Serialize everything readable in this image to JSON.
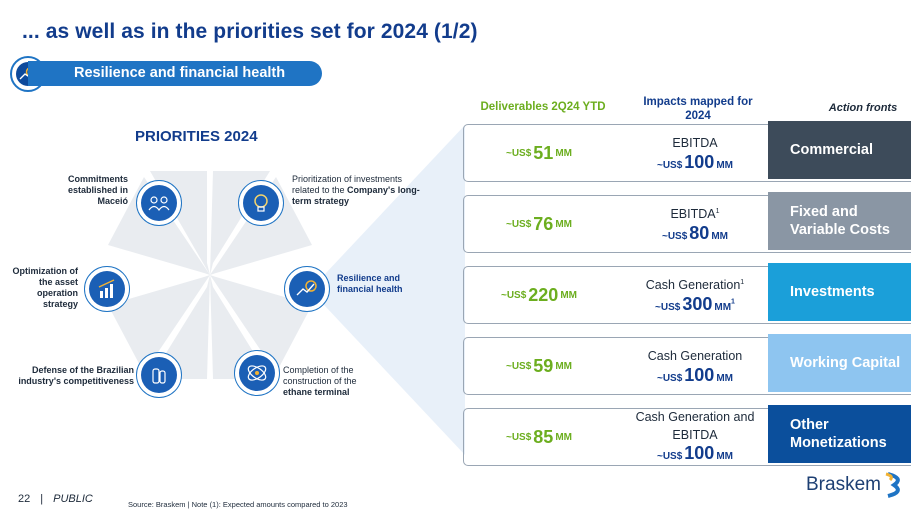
{
  "header": {
    "title": "... as well as in the priorities set for 2024 (1/2)",
    "subtitle": "Resilience and financial health"
  },
  "priorities": {
    "title": "PRIORITIES 2024",
    "items": [
      {
        "label": "Commitments established in Maceió",
        "icon": "people-icon"
      },
      {
        "label_pre": "Prioritization of investments related to the ",
        "label_bold": "Company's long-term strategy",
        "icon": "lightbulb-icon"
      },
      {
        "label": "Optimization of the asset operation strategy",
        "icon": "bar-chart-icon"
      },
      {
        "label": "Resilience and financial health",
        "icon": "money-growth-icon"
      },
      {
        "label": "Defense of the Brazilian industry's competitiveness",
        "icon": "bottles-icon"
      },
      {
        "label_pre": "Completion of the construction of the ",
        "label_bold": "ethane terminal",
        "icon": "molecule-icon"
      }
    ]
  },
  "columns": {
    "deliverables": "Deliverables 2Q24 YTD",
    "impacts": "Impacts mapped for 2024",
    "actions": "Action fronts"
  },
  "rows": [
    {
      "deliv_pre": "~US$",
      "deliv_num": "51",
      "deliv_unit": "MM",
      "impact_label": "EBITDA",
      "impact_sup": "",
      "impact_pre": "~US$",
      "impact_num": "100",
      "impact_unit": "MM",
      "impact_unit_sup": "",
      "action": "Commercial",
      "action_color": "#3d4b5a"
    },
    {
      "deliv_pre": "~US$",
      "deliv_num": "76",
      "deliv_unit": "MM",
      "impact_label": "EBITDA",
      "impact_sup": "1",
      "impact_pre": "~US$",
      "impact_num": "80",
      "impact_unit": "MM",
      "impact_unit_sup": "",
      "action": "Fixed and Variable Costs",
      "action_color": "#8a96a4"
    },
    {
      "deliv_pre": "~US$",
      "deliv_num": "220",
      "deliv_unit": "MM",
      "impact_label": "Cash Generation",
      "impact_sup": "1",
      "impact_pre": "~US$",
      "impact_num": "300",
      "impact_unit": "MM",
      "impact_unit_sup": "1",
      "action": "Investments",
      "action_color": "#1b9fd9"
    },
    {
      "deliv_pre": "~US$",
      "deliv_num": "59",
      "deliv_unit": "MM",
      "impact_label": "Cash Generation",
      "impact_sup": "",
      "impact_pre": "~US$",
      "impact_num": "100",
      "impact_unit": "MM",
      "impact_unit_sup": "",
      "action": "Working Capital",
      "action_color": "#8ec5f0"
    },
    {
      "deliv_pre": "~US$",
      "deliv_num": "85",
      "deliv_unit": "MM",
      "impact_label": "Cash Generation and EBITDA",
      "impact_sup": "",
      "impact_pre": "~US$",
      "impact_num": "100",
      "impact_unit": "MM",
      "impact_unit_sup": "",
      "action": "Other Monetizations",
      "action_color": "#0b4f9c"
    }
  ],
  "footer": {
    "page": "22",
    "separator": "|",
    "classification": "PUBLIC",
    "source": "Source: Braskem | Note (1): Expected amounts compared to 2023",
    "logo": "Braskem"
  },
  "colors": {
    "title_blue": "#123c8c",
    "accent_blue": "#1f74c4",
    "green": "#6cae1f"
  }
}
